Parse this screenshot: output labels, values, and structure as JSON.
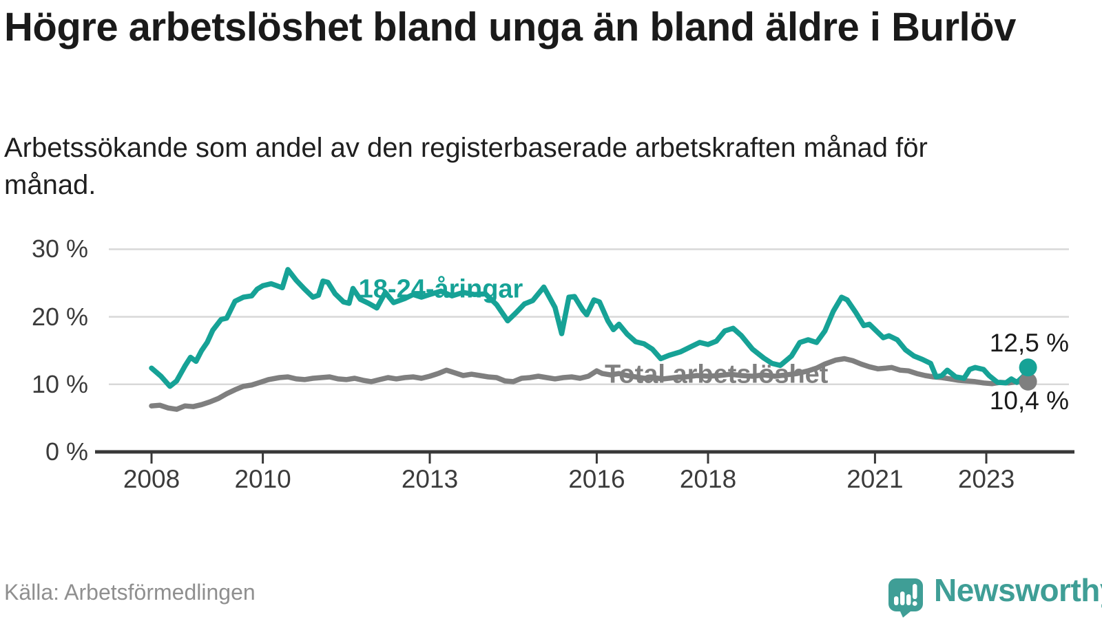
{
  "header": {
    "title": "Högre arbetslöshet bland unga än bland äldre i Burlöv",
    "subtitle": "Arbetssökande som andel av den registerbaserade arbetskraften månad för månad."
  },
  "footer": {
    "source": "Källa: Arbetsförmedlingen",
    "brand_name": "Newsworthy",
    "brand_icon": "newsworthy-speech-bubble-barchart-icon"
  },
  "colors": {
    "youth_line": "#16a296",
    "total_line": "#7f7f7f",
    "grid": "#d8d8d8",
    "axis": "#383838",
    "tick_text": "#3b3b3b",
    "value_text": "#1a1a1a",
    "brand_teal": "#3f9e96"
  },
  "chart_data": {
    "type": "line",
    "title": "Högre arbetslöshet bland unga än bland äldre i Burlöv",
    "subtitle": "Arbetssökande som andel av den registerbaserade arbetskraften månad för månad.",
    "unit": "%",
    "x_axis": {
      "ticks": [
        2008,
        2010,
        2013,
        2016,
        2018,
        2021,
        2023
      ],
      "range": [
        2007.6,
        2024.2
      ]
    },
    "y_axis": {
      "ticks": [
        0,
        10,
        20,
        30
      ],
      "tick_labels": [
        "0 %",
        "10 %",
        "20 %",
        "30 %"
      ],
      "range": [
        0,
        30
      ],
      "grid": true
    },
    "legend_position": "inline-labels",
    "series": [
      {
        "name": "Total arbetslöshet",
        "key": "total",
        "color": "#7f7f7f",
        "end_value_label": "10,4 %",
        "end_value": 10.4,
        "points": [
          [
            2008.0,
            6.8
          ],
          [
            2008.15,
            6.9
          ],
          [
            2008.3,
            6.5
          ],
          [
            2008.45,
            6.3
          ],
          [
            2008.6,
            6.8
          ],
          [
            2008.75,
            6.7
          ],
          [
            2008.9,
            7.0
          ],
          [
            2009.05,
            7.4
          ],
          [
            2009.2,
            7.9
          ],
          [
            2009.35,
            8.6
          ],
          [
            2009.5,
            9.2
          ],
          [
            2009.65,
            9.7
          ],
          [
            2009.8,
            9.9
          ],
          [
            2009.95,
            10.3
          ],
          [
            2010.1,
            10.7
          ],
          [
            2010.3,
            11.0
          ],
          [
            2010.45,
            11.1
          ],
          [
            2010.6,
            10.8
          ],
          [
            2010.75,
            10.7
          ],
          [
            2010.9,
            10.9
          ],
          [
            2011.05,
            11.0
          ],
          [
            2011.2,
            11.1
          ],
          [
            2011.35,
            10.8
          ],
          [
            2011.5,
            10.7
          ],
          [
            2011.65,
            10.9
          ],
          [
            2011.8,
            10.6
          ],
          [
            2011.95,
            10.4
          ],
          [
            2012.1,
            10.7
          ],
          [
            2012.25,
            11.0
          ],
          [
            2012.4,
            10.8
          ],
          [
            2012.55,
            11.0
          ],
          [
            2012.7,
            11.1
          ],
          [
            2012.85,
            10.9
          ],
          [
            2013.0,
            11.2
          ],
          [
            2013.15,
            11.6
          ],
          [
            2013.3,
            12.1
          ],
          [
            2013.45,
            11.7
          ],
          [
            2013.6,
            11.3
          ],
          [
            2013.75,
            11.5
          ],
          [
            2013.9,
            11.3
          ],
          [
            2014.05,
            11.1
          ],
          [
            2014.2,
            11.0
          ],
          [
            2014.35,
            10.5
          ],
          [
            2014.5,
            10.4
          ],
          [
            2014.65,
            10.9
          ],
          [
            2014.8,
            11.0
          ],
          [
            2014.95,
            11.2
          ],
          [
            2015.1,
            11.0
          ],
          [
            2015.25,
            10.8
          ],
          [
            2015.4,
            11.0
          ],
          [
            2015.55,
            11.1
          ],
          [
            2015.7,
            10.9
          ],
          [
            2015.85,
            11.2
          ],
          [
            2016.0,
            12.0
          ],
          [
            2016.1,
            11.6
          ],
          [
            2016.25,
            11.4
          ],
          [
            2016.4,
            11.6
          ],
          [
            2016.55,
            11.3
          ],
          [
            2016.7,
            11.1
          ],
          [
            2016.85,
            10.9
          ],
          [
            2017.0,
            11.0
          ],
          [
            2017.2,
            10.8
          ],
          [
            2017.4,
            11.0
          ],
          [
            2017.6,
            11.1
          ],
          [
            2017.8,
            11.3
          ],
          [
            2018.0,
            11.2
          ],
          [
            2018.2,
            11.3
          ],
          [
            2018.4,
            11.5
          ],
          [
            2018.6,
            11.3
          ],
          [
            2018.8,
            11.2
          ],
          [
            2019.0,
            11.4
          ],
          [
            2019.2,
            11.2
          ],
          [
            2019.4,
            11.4
          ],
          [
            2019.6,
            11.6
          ],
          [
            2019.8,
            12.0
          ],
          [
            2019.95,
            12.4
          ],
          [
            2020.1,
            13.0
          ],
          [
            2020.3,
            13.6
          ],
          [
            2020.45,
            13.8
          ],
          [
            2020.6,
            13.5
          ],
          [
            2020.75,
            13.0
          ],
          [
            2020.9,
            12.6
          ],
          [
            2021.05,
            12.3
          ],
          [
            2021.2,
            12.4
          ],
          [
            2021.3,
            12.5
          ],
          [
            2021.45,
            12.1
          ],
          [
            2021.6,
            12.0
          ],
          [
            2021.75,
            11.6
          ],
          [
            2021.9,
            11.3
          ],
          [
            2022.05,
            11.1
          ],
          [
            2022.2,
            11.0
          ],
          [
            2022.35,
            10.8
          ],
          [
            2022.5,
            10.6
          ],
          [
            2022.65,
            10.5
          ],
          [
            2022.8,
            10.4
          ],
          [
            2022.95,
            10.2
          ],
          [
            2023.1,
            10.1
          ],
          [
            2023.25,
            10.3
          ],
          [
            2023.4,
            10.2
          ],
          [
            2023.55,
            10.4
          ],
          [
            2023.75,
            10.4
          ]
        ]
      },
      {
        "name": "18-24-åringar",
        "key": "youth",
        "color": "#16a296",
        "end_value_label": "12,5 %",
        "end_value": 12.5,
        "points": [
          [
            2008.0,
            12.4
          ],
          [
            2008.17,
            11.2
          ],
          [
            2008.33,
            9.7
          ],
          [
            2008.45,
            10.5
          ],
          [
            2008.6,
            12.7
          ],
          [
            2008.7,
            14.0
          ],
          [
            2008.8,
            13.4
          ],
          [
            2008.9,
            15.0
          ],
          [
            2009.0,
            16.2
          ],
          [
            2009.1,
            18.0
          ],
          [
            2009.25,
            19.6
          ],
          [
            2009.35,
            19.8
          ],
          [
            2009.5,
            22.3
          ],
          [
            2009.65,
            22.9
          ],
          [
            2009.8,
            23.1
          ],
          [
            2009.9,
            24.1
          ],
          [
            2010.0,
            24.6
          ],
          [
            2010.15,
            24.9
          ],
          [
            2010.25,
            24.6
          ],
          [
            2010.35,
            24.3
          ],
          [
            2010.45,
            27.0
          ],
          [
            2010.6,
            25.4
          ],
          [
            2010.75,
            24.1
          ],
          [
            2010.9,
            22.9
          ],
          [
            2011.0,
            23.2
          ],
          [
            2011.08,
            25.3
          ],
          [
            2011.17,
            25.1
          ],
          [
            2011.3,
            23.4
          ],
          [
            2011.45,
            22.2
          ],
          [
            2011.55,
            22.0
          ],
          [
            2011.62,
            24.2
          ],
          [
            2011.75,
            22.6
          ],
          [
            2011.9,
            22.0
          ],
          [
            2012.05,
            21.3
          ],
          [
            2012.2,
            23.6
          ],
          [
            2012.35,
            22.1
          ],
          [
            2012.55,
            22.7
          ],
          [
            2012.7,
            23.3
          ],
          [
            2012.85,
            22.9
          ],
          [
            2013.0,
            23.3
          ],
          [
            2013.2,
            23.8
          ],
          [
            2013.4,
            23.1
          ],
          [
            2013.6,
            23.6
          ],
          [
            2013.8,
            23.3
          ],
          [
            2014.0,
            23.4
          ],
          [
            2014.2,
            21.8
          ],
          [
            2014.4,
            19.4
          ],
          [
            2014.55,
            20.6
          ],
          [
            2014.7,
            21.9
          ],
          [
            2014.85,
            22.4
          ],
          [
            2015.05,
            24.4
          ],
          [
            2015.25,
            21.4
          ],
          [
            2015.37,
            17.5
          ],
          [
            2015.5,
            22.9
          ],
          [
            2015.6,
            23.0
          ],
          [
            2015.75,
            21.0
          ],
          [
            2015.82,
            20.3
          ],
          [
            2015.95,
            22.5
          ],
          [
            2016.05,
            22.2
          ],
          [
            2016.2,
            19.4
          ],
          [
            2016.3,
            18.1
          ],
          [
            2016.4,
            18.9
          ],
          [
            2016.55,
            17.4
          ],
          [
            2016.7,
            16.3
          ],
          [
            2016.85,
            16.0
          ],
          [
            2017.0,
            15.2
          ],
          [
            2017.15,
            13.8
          ],
          [
            2017.3,
            14.3
          ],
          [
            2017.5,
            14.8
          ],
          [
            2017.7,
            15.6
          ],
          [
            2017.85,
            16.2
          ],
          [
            2018.0,
            15.9
          ],
          [
            2018.15,
            16.4
          ],
          [
            2018.3,
            17.9
          ],
          [
            2018.45,
            18.3
          ],
          [
            2018.6,
            17.2
          ],
          [
            2018.8,
            15.2
          ],
          [
            2019.0,
            13.9
          ],
          [
            2019.15,
            13.1
          ],
          [
            2019.3,
            12.8
          ],
          [
            2019.5,
            14.2
          ],
          [
            2019.65,
            16.2
          ],
          [
            2019.8,
            16.6
          ],
          [
            2019.95,
            16.2
          ],
          [
            2020.1,
            17.9
          ],
          [
            2020.25,
            20.8
          ],
          [
            2020.4,
            22.9
          ],
          [
            2020.5,
            22.5
          ],
          [
            2020.65,
            20.7
          ],
          [
            2020.8,
            18.7
          ],
          [
            2020.9,
            18.9
          ],
          [
            2021.05,
            17.7
          ],
          [
            2021.15,
            16.9
          ],
          [
            2021.25,
            17.2
          ],
          [
            2021.4,
            16.6
          ],
          [
            2021.55,
            15.1
          ],
          [
            2021.7,
            14.2
          ],
          [
            2021.85,
            13.7
          ],
          [
            2022.0,
            13.1
          ],
          [
            2022.1,
            11.1
          ],
          [
            2022.2,
            11.3
          ],
          [
            2022.3,
            12.1
          ],
          [
            2022.45,
            11.1
          ],
          [
            2022.6,
            10.9
          ],
          [
            2022.7,
            12.2
          ],
          [
            2022.8,
            12.5
          ],
          [
            2022.95,
            12.2
          ],
          [
            2023.05,
            11.3
          ],
          [
            2023.2,
            10.3
          ],
          [
            2023.35,
            10.2
          ],
          [
            2023.45,
            10.8
          ],
          [
            2023.55,
            10.3
          ],
          [
            2023.67,
            11.2
          ],
          [
            2023.75,
            12.5
          ]
        ]
      }
    ],
    "inline_labels": [
      {
        "text": "18-24-åringar",
        "series": "youth"
      },
      {
        "text": "Total arbetslöshet",
        "series": "total"
      }
    ]
  }
}
